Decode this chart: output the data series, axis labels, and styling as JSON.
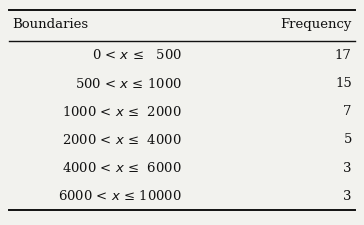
{
  "col1_header": "Boundaries",
  "col2_header": "Frequency",
  "rows": [
    {
      "boundary": "0 < $x$ ≤   500",
      "frequency": "17"
    },
    {
      "boundary": "500 < $x$ ≤ 1000",
      "frequency": "15"
    },
    {
      "boundary": "1000 < $x$ ≤  2000",
      "frequency": "7"
    },
    {
      "boundary": "2000 < $x$ ≤  4000",
      "frequency": "5"
    },
    {
      "boundary": "4000 < $x$ ≤  6000",
      "frequency": "3"
    },
    {
      "boundary": "6000 < $x$ ≤ 10000",
      "frequency": "3"
    }
  ],
  "bg_color": "#f2f2ee",
  "text_color": "#111111",
  "header_fontsize": 9.5,
  "data_fontsize": 9.5,
  "figsize": [
    3.64,
    2.25
  ],
  "dpi": 100
}
